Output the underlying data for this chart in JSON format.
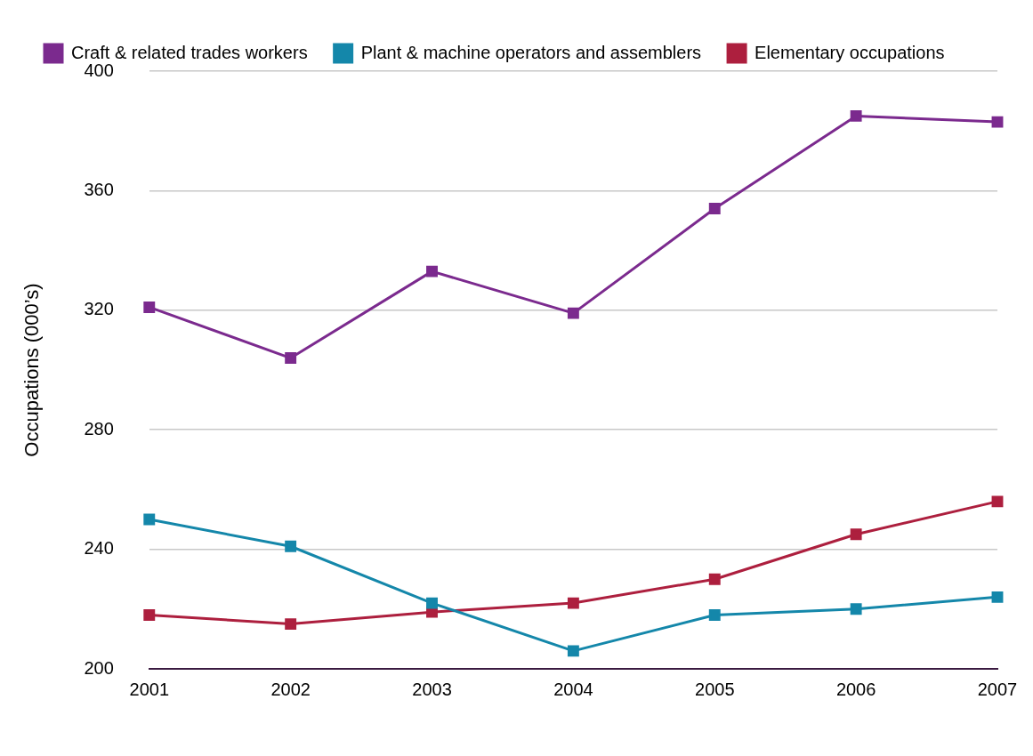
{
  "chart_data": {
    "type": "line",
    "ylabel": "Occupations (000’s)",
    "categories": [
      "2001",
      "2002",
      "2003",
      "2004",
      "2005",
      "2006",
      "2007"
    ],
    "series": [
      {
        "name": "Craft & related trades workers",
        "color": "#7b2a8e",
        "values": [
          321,
          304,
          333,
          319,
          354,
          385,
          383
        ]
      },
      {
        "name": "Plant & machine operators and assemblers",
        "color": "#1487aa",
        "values": [
          250,
          241,
          222,
          206,
          218,
          220,
          224
        ]
      },
      {
        "name": "Elementary occupations",
        "color": "#ad1f3e",
        "values": [
          218,
          215,
          219,
          222,
          230,
          245,
          256
        ]
      }
    ],
    "ylim": [
      200,
      400
    ],
    "yticks": [
      200,
      240,
      280,
      320,
      360,
      400
    ],
    "grid": "y",
    "legend": "top",
    "marker": "square",
    "line_style": "solid"
  }
}
